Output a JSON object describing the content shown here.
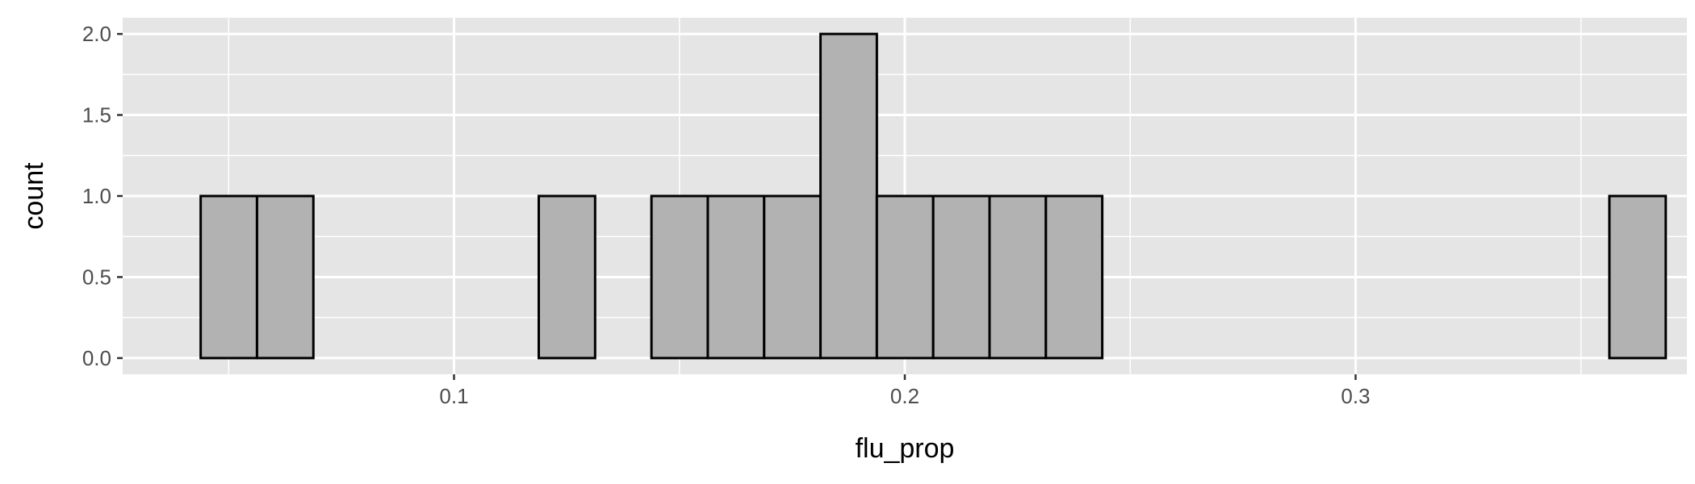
{
  "chart_data": {
    "type": "bar",
    "subtype": "histogram",
    "title": "",
    "xlabel": "flu_prop",
    "ylabel": "count",
    "xlim": [
      0.0265,
      0.3735
    ],
    "ylim": [
      -0.1,
      2.1
    ],
    "x_ticks": [
      0.1,
      0.2,
      0.3
    ],
    "x_tick_labels": [
      "0.1",
      "0.2",
      "0.3"
    ],
    "y_ticks": [
      0.0,
      0.5,
      1.0,
      1.5,
      2.0
    ],
    "y_tick_labels": [
      "0.0",
      "0.5",
      "1.0",
      "1.5",
      "2.0"
    ],
    "bin_width": 0.0125,
    "bin_start": 0.0438,
    "counts": [
      1,
      1,
      0,
      0,
      0,
      0,
      1,
      0,
      1,
      1,
      1,
      2,
      1,
      1,
      1,
      1,
      0,
      0,
      0,
      0,
      0,
      0,
      0,
      0,
      0,
      1
    ],
    "grid": true,
    "colors": {
      "panel_background": "#e5e5e5",
      "grid": "#ffffff",
      "bar_fill": "#b2b2b2",
      "bar_outline": "#000000"
    }
  }
}
